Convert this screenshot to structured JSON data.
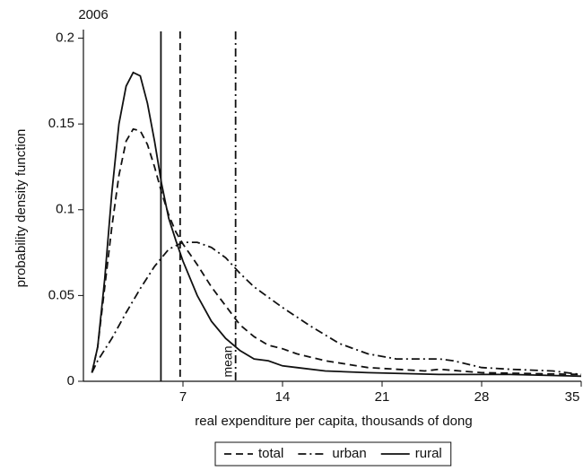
{
  "chart_data": {
    "type": "line",
    "title": "2006",
    "x_label": "real expenditure per capita, thousands of dong",
    "y_label": "probability density function",
    "annotation": "mean",
    "xlim": [
      0,
      35
    ],
    "ylim": [
      0,
      0.205
    ],
    "xticks": [
      7,
      14,
      21,
      28,
      35
    ],
    "yticks": [
      0,
      0.05,
      0.1,
      0.15,
      0.2
    ],
    "legend": "bottom",
    "series": [
      {
        "name": "total",
        "color": "#111",
        "dash": "dashed",
        "mean": 6.8,
        "x": [
          0.6,
          1,
          1.5,
          2,
          2.5,
          3,
          3.5,
          4,
          4.5,
          5,
          5.5,
          6,
          6.5,
          7,
          8,
          9,
          10,
          11,
          12,
          13,
          14,
          15,
          17,
          20,
          24,
          25,
          28,
          35
        ],
        "values": [
          0.005,
          0.02,
          0.055,
          0.09,
          0.12,
          0.14,
          0.147,
          0.146,
          0.138,
          0.125,
          0.11,
          0.097,
          0.087,
          0.08,
          0.068,
          0.055,
          0.044,
          0.033,
          0.026,
          0.021,
          0.019,
          0.016,
          0.012,
          0.008,
          0.006,
          0.007,
          0.005,
          0.004
        ]
      },
      {
        "name": "urban",
        "color": "#111",
        "dash": "dashdot",
        "mean": 10.7,
        "x": [
          0.6,
          1,
          2,
          3,
          4,
          5,
          6,
          7,
          8,
          9,
          10,
          11,
          12,
          14,
          16,
          18,
          20,
          22,
          24,
          25,
          26,
          28,
          30,
          33,
          35
        ],
        "values": [
          0.005,
          0.012,
          0.025,
          0.04,
          0.054,
          0.067,
          0.077,
          0.081,
          0.081,
          0.078,
          0.072,
          0.063,
          0.055,
          0.043,
          0.032,
          0.022,
          0.016,
          0.013,
          0.013,
          0.013,
          0.012,
          0.008,
          0.007,
          0.006,
          0.004
        ]
      },
      {
        "name": "rural",
        "color": "#111",
        "dash": "solid",
        "mean": 5.45,
        "x": [
          0.6,
          1,
          1.5,
          2,
          2.5,
          3,
          3.5,
          4,
          4.5,
          5,
          5.5,
          6,
          6.5,
          7,
          8,
          9,
          10,
          11,
          12,
          13,
          14,
          15,
          17,
          20,
          25,
          30,
          35
        ],
        "values": [
          0.005,
          0.02,
          0.06,
          0.11,
          0.15,
          0.172,
          0.18,
          0.178,
          0.162,
          0.14,
          0.115,
          0.095,
          0.082,
          0.07,
          0.05,
          0.035,
          0.025,
          0.018,
          0.013,
          0.012,
          0.009,
          0.008,
          0.006,
          0.005,
          0.004,
          0.004,
          0.003
        ]
      }
    ]
  }
}
